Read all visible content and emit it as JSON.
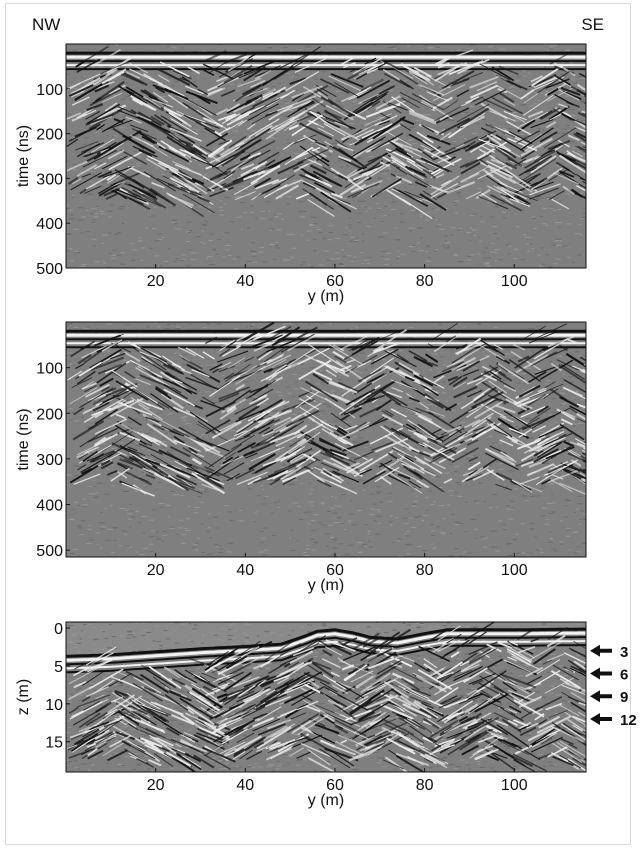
{
  "orientation": {
    "left": "NW",
    "right": "SE"
  },
  "colors": {
    "background": "#7f7f7f",
    "axis": "#111111"
  },
  "chart_data": [
    {
      "type": "heatmap",
      "title": "",
      "xlabel": "y (m)",
      "ylabel": "time (ns)",
      "xlim": [
        0,
        116
      ],
      "ylim": [
        500,
        0
      ],
      "xticks": [
        20,
        40,
        60,
        80,
        100
      ],
      "yticks": [
        100,
        200,
        300,
        400,
        500
      ],
      "grid": false,
      "surface": [
        [
          0,
          18
        ],
        [
          20,
          18
        ],
        [
          40,
          18
        ],
        [
          60,
          18
        ],
        [
          80,
          18
        ],
        [
          116,
          18
        ]
      ],
      "signal_depth": 330
    },
    {
      "type": "heatmap",
      "title": "",
      "xlabel": "y (m)",
      "ylabel": "time (ns)",
      "xlim": [
        0,
        116
      ],
      "ylim": [
        515,
        0
      ],
      "xticks": [
        20,
        40,
        60,
        80,
        100
      ],
      "yticks": [
        100,
        200,
        300,
        400,
        500
      ],
      "grid": false,
      "surface": [
        [
          0,
          18
        ],
        [
          20,
          18
        ],
        [
          40,
          18
        ],
        [
          60,
          18
        ],
        [
          80,
          18
        ],
        [
          116,
          18
        ]
      ],
      "signal_depth": 340
    },
    {
      "type": "heatmap",
      "title": "",
      "xlabel": "y (m)",
      "ylabel": "z (m)",
      "xlim": [
        0,
        116
      ],
      "ylim": [
        19,
        -0.8
      ],
      "xticks": [
        20,
        40,
        60,
        80,
        100
      ],
      "yticks": [
        0,
        5,
        10,
        15
      ],
      "grid": false,
      "surface": [
        [
          0,
          3.6
        ],
        [
          10,
          3.4
        ],
        [
          20,
          3.0
        ],
        [
          30,
          2.6
        ],
        [
          40,
          2.3
        ],
        [
          48,
          2.0
        ],
        [
          53,
          1.0
        ],
        [
          56,
          0.3
        ],
        [
          60,
          0.1
        ],
        [
          64,
          0.5
        ],
        [
          68,
          1.1
        ],
        [
          74,
          1.3
        ],
        [
          80,
          0.6
        ],
        [
          85,
          0.1
        ],
        [
          100,
          0.1
        ],
        [
          116,
          0.0
        ]
      ],
      "signal_depth": 16.5,
      "annotations": [
        {
          "label": "3",
          "z": 3
        },
        {
          "label": "6",
          "z": 6
        },
        {
          "label": "9",
          "z": 9
        },
        {
          "label": "12",
          "z": 12
        }
      ]
    }
  ]
}
